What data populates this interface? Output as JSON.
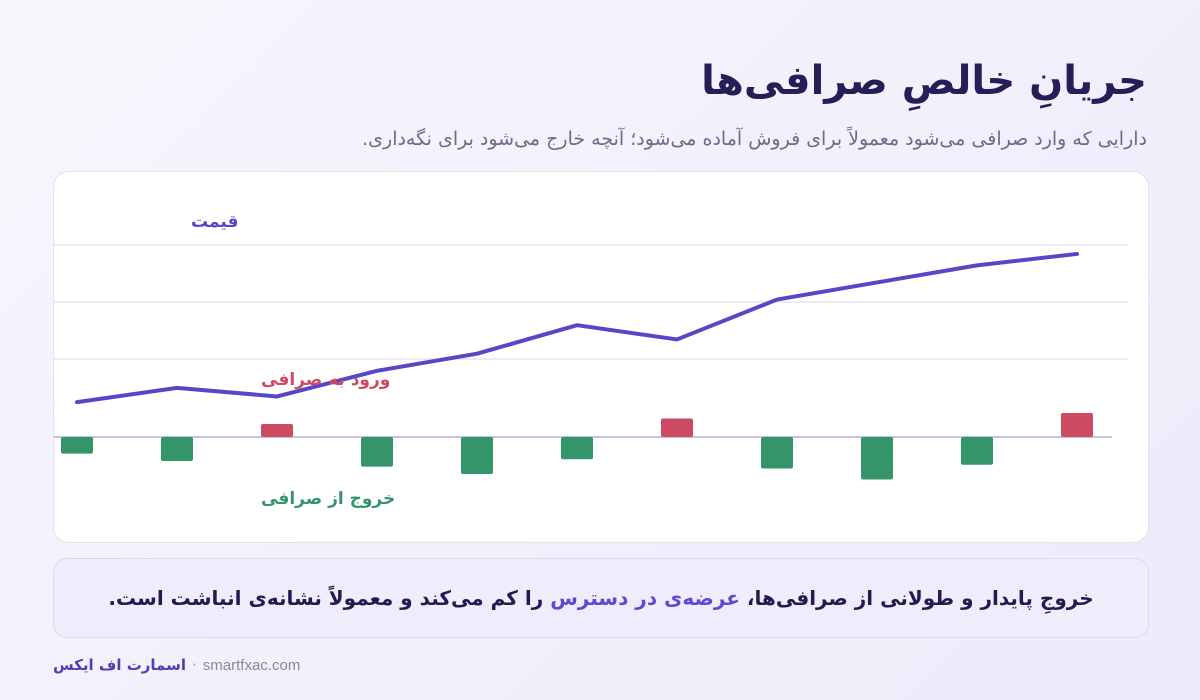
{
  "header": {
    "title": "جریانِ خالصِ صرافی‌ها",
    "subtitle": "دارایی که وارد صرافی می‌شود معمولاً برای فروش آماده می‌شود؛ آنچه خارج می‌شود برای نگه‌داری."
  },
  "chart_data": {
    "type": "bar",
    "title": "",
    "price_series": {
      "label": "قیمت",
      "values": [
        1.05,
        1.3,
        1.15,
        1.6,
        1.9,
        2.4,
        2.15,
        2.85,
        3.15,
        3.45,
        3.65
      ],
      "ylim": [
        0,
        4
      ],
      "color": "#5746c8"
    },
    "flow_series": {
      "values": [
        -0.9,
        -1.3,
        0.7,
        -1.6,
        -2.0,
        -1.2,
        1.0,
        -1.7,
        -2.3,
        -1.5,
        1.3
      ],
      "ylim": [
        -2.5,
        1.5
      ],
      "inflow": {
        "label": "ورود به صرافی",
        "color": "#cc4b63"
      },
      "outflow": {
        "label": "خروج از صرافی",
        "color": "#34956b"
      }
    },
    "grid": true
  },
  "callout": {
    "before": "خروجِ پایدار و طولانی از صرافی‌ها، ",
    "highlight": "عرضه‌ی در دسترس",
    "after": " را کم می‌کند و معمولاً نشانه‌ی انباشت است."
  },
  "footer": {
    "brand": "اسمارت اف ایکس",
    "separator": "·",
    "site": "smartfxac.com"
  }
}
